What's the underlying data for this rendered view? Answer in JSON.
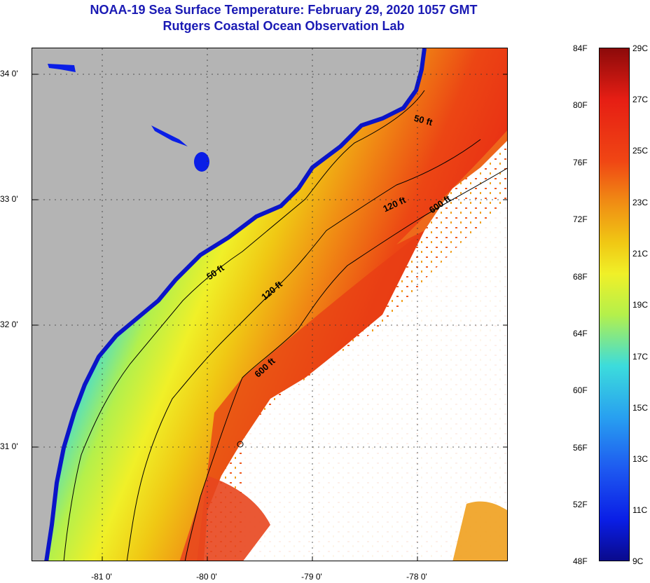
{
  "title": "NOAA-19 Sea Surface Temperature:  February 29, 2020 1057 GMT",
  "subtitle": "Rutgers Coastal Ocean Observation Lab",
  "lat_labels": [
    "34 0'",
    "33 0'",
    "32 0'",
    "31 0'"
  ],
  "lon_labels": [
    "-81 0'",
    "-80 0'",
    "-79 0'",
    "-78 0'"
  ],
  "contours": [
    "50 ft",
    "120 ft",
    "600 ft",
    "50 ft",
    "120 ft",
    "600 ft"
  ],
  "colorbar_f": [
    "84F",
    "80F",
    "76F",
    "72F",
    "68F",
    "64F",
    "60F",
    "56F",
    "52F",
    "48F"
  ],
  "colorbar_c": [
    "29C",
    "27C",
    "25C",
    "23C",
    "21C",
    "19C",
    "17C",
    "15C",
    "13C",
    "11C",
    "9C"
  ],
  "colors": {
    "title": "#1a1ab4",
    "land": "#b4b4b4",
    "cloud": "#ffffff"
  }
}
